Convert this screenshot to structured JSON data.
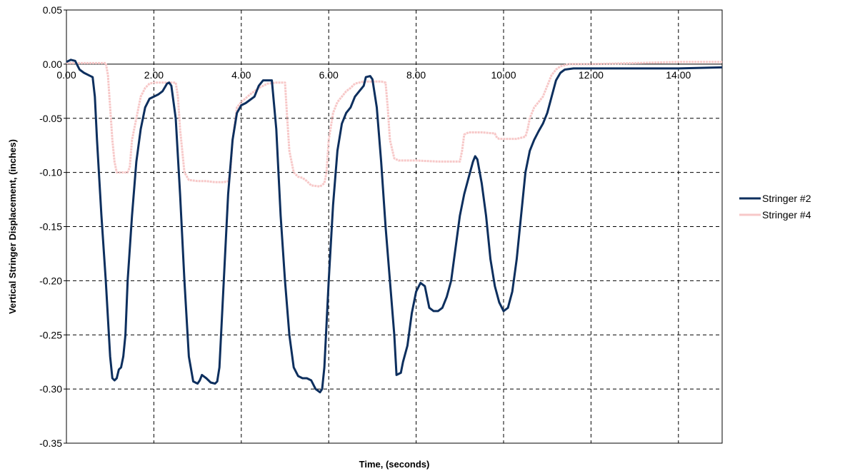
{
  "chart_data": {
    "type": "line",
    "title": "",
    "xlabel": "Time, (seconds)",
    "ylabel": "Vertical Stringer Displacement, (inches)",
    "xlim": [
      0,
      15
    ],
    "ylim": [
      -0.35,
      0.05
    ],
    "x_ticks": [
      0,
      2,
      4,
      6,
      8,
      10,
      12,
      14
    ],
    "x_tick_labels": [
      "0.00",
      "2.00",
      "4.00",
      "6.00",
      "8.00",
      "10.00",
      "12.00",
      "14.00"
    ],
    "y_ticks": [
      0.05,
      0.0,
      -0.05,
      -0.1,
      -0.15,
      -0.2,
      -0.25,
      -0.3,
      -0.35
    ],
    "y_tick_labels": [
      "0.05",
      "0.00",
      "-0.05",
      "-0.10",
      "-0.15",
      "-0.20",
      "-0.25",
      "-0.30",
      "-0.35"
    ],
    "grid": true,
    "legend_position": "right",
    "series": [
      {
        "name": "Stringer #2",
        "color": "#0d2f5e",
        "points": [
          [
            0.0,
            0.002
          ],
          [
            0.1,
            0.004
          ],
          [
            0.2,
            0.003
          ],
          [
            0.3,
            -0.005
          ],
          [
            0.4,
            -0.008
          ],
          [
            0.5,
            -0.01
          ],
          [
            0.6,
            -0.012
          ],
          [
            0.65,
            -0.03
          ],
          [
            0.7,
            -0.07
          ],
          [
            0.8,
            -0.14
          ],
          [
            0.9,
            -0.2
          ],
          [
            1.0,
            -0.27
          ],
          [
            1.05,
            -0.29
          ],
          [
            1.1,
            -0.292
          ],
          [
            1.15,
            -0.29
          ],
          [
            1.2,
            -0.282
          ],
          [
            1.25,
            -0.28
          ],
          [
            1.3,
            -0.27
          ],
          [
            1.35,
            -0.25
          ],
          [
            1.4,
            -0.2
          ],
          [
            1.5,
            -0.14
          ],
          [
            1.6,
            -0.09
          ],
          [
            1.7,
            -0.06
          ],
          [
            1.8,
            -0.04
          ],
          [
            1.9,
            -0.032
          ],
          [
            2.0,
            -0.03
          ],
          [
            2.1,
            -0.028
          ],
          [
            2.2,
            -0.025
          ],
          [
            2.3,
            -0.018
          ],
          [
            2.35,
            -0.017
          ],
          [
            2.4,
            -0.02
          ],
          [
            2.5,
            -0.05
          ],
          [
            2.6,
            -0.12
          ],
          [
            2.7,
            -0.2
          ],
          [
            2.8,
            -0.27
          ],
          [
            2.9,
            -0.293
          ],
          [
            3.0,
            -0.295
          ],
          [
            3.05,
            -0.292
          ],
          [
            3.1,
            -0.287
          ],
          [
            3.2,
            -0.29
          ],
          [
            3.3,
            -0.294
          ],
          [
            3.4,
            -0.295
          ],
          [
            3.45,
            -0.293
          ],
          [
            3.5,
            -0.28
          ],
          [
            3.6,
            -0.2
          ],
          [
            3.7,
            -0.12
          ],
          [
            3.8,
            -0.07
          ],
          [
            3.9,
            -0.045
          ],
          [
            4.0,
            -0.038
          ],
          [
            4.1,
            -0.036
          ],
          [
            4.2,
            -0.033
          ],
          [
            4.3,
            -0.03
          ],
          [
            4.4,
            -0.02
          ],
          [
            4.5,
            -0.015
          ],
          [
            4.6,
            -0.015
          ],
          [
            4.7,
            -0.015
          ],
          [
            4.8,
            -0.06
          ],
          [
            4.9,
            -0.14
          ],
          [
            5.0,
            -0.2
          ],
          [
            5.1,
            -0.25
          ],
          [
            5.2,
            -0.28
          ],
          [
            5.3,
            -0.288
          ],
          [
            5.4,
            -0.29
          ],
          [
            5.5,
            -0.29
          ],
          [
            5.6,
            -0.292
          ],
          [
            5.7,
            -0.3
          ],
          [
            5.8,
            -0.303
          ],
          [
            5.85,
            -0.3
          ],
          [
            5.9,
            -0.28
          ],
          [
            6.0,
            -0.2
          ],
          [
            6.1,
            -0.13
          ],
          [
            6.2,
            -0.08
          ],
          [
            6.3,
            -0.055
          ],
          [
            6.4,
            -0.045
          ],
          [
            6.5,
            -0.04
          ],
          [
            6.6,
            -0.03
          ],
          [
            6.7,
            -0.025
          ],
          [
            6.8,
            -0.02
          ],
          [
            6.85,
            -0.012
          ],
          [
            6.95,
            -0.011
          ],
          [
            7.0,
            -0.014
          ],
          [
            7.1,
            -0.04
          ],
          [
            7.2,
            -0.09
          ],
          [
            7.3,
            -0.15
          ],
          [
            7.4,
            -0.2
          ],
          [
            7.5,
            -0.25
          ],
          [
            7.55,
            -0.287
          ],
          [
            7.65,
            -0.285
          ],
          [
            7.7,
            -0.275
          ],
          [
            7.8,
            -0.26
          ],
          [
            7.9,
            -0.23
          ],
          [
            8.0,
            -0.21
          ],
          [
            8.1,
            -0.202
          ],
          [
            8.2,
            -0.205
          ],
          [
            8.3,
            -0.225
          ],
          [
            8.4,
            -0.228
          ],
          [
            8.5,
            -0.228
          ],
          [
            8.6,
            -0.225
          ],
          [
            8.7,
            -0.215
          ],
          [
            8.8,
            -0.2
          ],
          [
            8.9,
            -0.17
          ],
          [
            9.0,
            -0.14
          ],
          [
            9.1,
            -0.12
          ],
          [
            9.2,
            -0.105
          ],
          [
            9.3,
            -0.09
          ],
          [
            9.35,
            -0.085
          ],
          [
            9.4,
            -0.088
          ],
          [
            9.5,
            -0.11
          ],
          [
            9.6,
            -0.14
          ],
          [
            9.7,
            -0.18
          ],
          [
            9.8,
            -0.205
          ],
          [
            9.9,
            -0.22
          ],
          [
            10.0,
            -0.228
          ],
          [
            10.1,
            -0.225
          ],
          [
            10.2,
            -0.21
          ],
          [
            10.3,
            -0.18
          ],
          [
            10.4,
            -0.14
          ],
          [
            10.5,
            -0.1
          ],
          [
            10.6,
            -0.08
          ],
          [
            10.7,
            -0.07
          ],
          [
            10.8,
            -0.062
          ],
          [
            10.9,
            -0.055
          ],
          [
            11.0,
            -0.045
          ],
          [
            11.1,
            -0.03
          ],
          [
            11.2,
            -0.015
          ],
          [
            11.3,
            -0.008
          ],
          [
            11.4,
            -0.005
          ],
          [
            11.6,
            -0.004
          ],
          [
            12.0,
            -0.004
          ],
          [
            13.0,
            -0.004
          ],
          [
            14.0,
            -0.004
          ],
          [
            15.0,
            -0.003
          ]
        ]
      },
      {
        "name": "Stringer #4",
        "color": "#f7c8c8",
        "points": [
          [
            0.0,
            0.001
          ],
          [
            0.5,
            0.001
          ],
          [
            0.9,
            0.001
          ],
          [
            0.95,
            -0.01
          ],
          [
            1.0,
            -0.04
          ],
          [
            1.05,
            -0.07
          ],
          [
            1.1,
            -0.09
          ],
          [
            1.15,
            -0.1
          ],
          [
            1.2,
            -0.1
          ],
          [
            1.3,
            -0.1
          ],
          [
            1.4,
            -0.1
          ],
          [
            1.45,
            -0.095
          ],
          [
            1.5,
            -0.07
          ],
          [
            1.6,
            -0.05
          ],
          [
            1.7,
            -0.03
          ],
          [
            1.8,
            -0.022
          ],
          [
            1.9,
            -0.018
          ],
          [
            2.0,
            -0.017
          ],
          [
            2.2,
            -0.017
          ],
          [
            2.4,
            -0.017
          ],
          [
            2.5,
            -0.017
          ],
          [
            2.55,
            -0.03
          ],
          [
            2.6,
            -0.06
          ],
          [
            2.7,
            -0.1
          ],
          [
            2.8,
            -0.107
          ],
          [
            3.0,
            -0.108
          ],
          [
            3.2,
            -0.108
          ],
          [
            3.4,
            -0.109
          ],
          [
            3.6,
            -0.109
          ],
          [
            3.7,
            -0.108
          ],
          [
            3.75,
            -0.1
          ],
          [
            3.8,
            -0.07
          ],
          [
            3.9,
            -0.04
          ],
          [
            4.0,
            -0.035
          ],
          [
            4.2,
            -0.028
          ],
          [
            4.4,
            -0.022
          ],
          [
            4.6,
            -0.018
          ],
          [
            4.8,
            -0.017
          ],
          [
            5.0,
            -0.017
          ],
          [
            5.05,
            -0.05
          ],
          [
            5.1,
            -0.08
          ],
          [
            5.2,
            -0.1
          ],
          [
            5.3,
            -0.104
          ],
          [
            5.4,
            -0.105
          ],
          [
            5.5,
            -0.108
          ],
          [
            5.6,
            -0.112
          ],
          [
            5.8,
            -0.113
          ],
          [
            5.9,
            -0.11
          ],
          [
            5.95,
            -0.1
          ],
          [
            6.0,
            -0.07
          ],
          [
            6.1,
            -0.045
          ],
          [
            6.2,
            -0.035
          ],
          [
            6.3,
            -0.03
          ],
          [
            6.4,
            -0.025
          ],
          [
            6.5,
            -0.022
          ],
          [
            6.6,
            -0.018
          ],
          [
            6.8,
            -0.016
          ],
          [
            7.0,
            -0.016
          ],
          [
            7.2,
            -0.016
          ],
          [
            7.3,
            -0.017
          ],
          [
            7.35,
            -0.04
          ],
          [
            7.4,
            -0.07
          ],
          [
            7.5,
            -0.087
          ],
          [
            7.6,
            -0.089
          ],
          [
            8.0,
            -0.089
          ],
          [
            8.5,
            -0.09
          ],
          [
            9.0,
            -0.09
          ],
          [
            9.05,
            -0.08
          ],
          [
            9.1,
            -0.065
          ],
          [
            9.2,
            -0.063
          ],
          [
            9.5,
            -0.063
          ],
          [
            9.8,
            -0.064
          ],
          [
            9.85,
            -0.068
          ],
          [
            9.9,
            -0.069
          ],
          [
            10.3,
            -0.069
          ],
          [
            10.5,
            -0.067
          ],
          [
            10.55,
            -0.06
          ],
          [
            10.6,
            -0.05
          ],
          [
            10.7,
            -0.04
          ],
          [
            10.8,
            -0.035
          ],
          [
            10.9,
            -0.03
          ],
          [
            11.0,
            -0.02
          ],
          [
            11.1,
            -0.01
          ],
          [
            11.2,
            -0.005
          ],
          [
            11.3,
            -0.002
          ],
          [
            11.5,
            0.0
          ],
          [
            12.0,
            0.0
          ],
          [
            13.0,
            0.001
          ],
          [
            14.0,
            0.002
          ],
          [
            15.0,
            0.002
          ]
        ]
      }
    ]
  }
}
